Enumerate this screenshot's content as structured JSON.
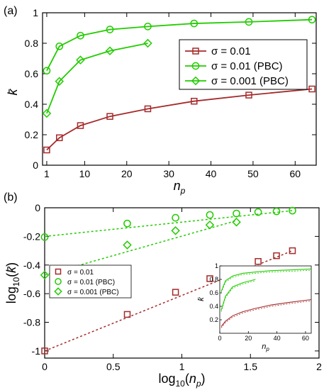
{
  "colors": {
    "red": "#a52a2a",
    "green": "#22cc00",
    "axis": "#000000"
  },
  "chart_data": [
    {
      "type": "line",
      "panel_label": "(a)",
      "xlabel": {
        "main": "n",
        "sub": "p"
      },
      "ylabel": "k̄",
      "xlim": [
        0,
        65
      ],
      "ylim": [
        0,
        1
      ],
      "xticks": [
        1,
        10,
        20,
        30,
        40,
        50,
        60
      ],
      "yticks": [
        0,
        0.2,
        0.4,
        0.6,
        0.8,
        1
      ],
      "legend_position": "center-right",
      "series": [
        {
          "name": "σ = 0.01",
          "color": "#a52a2a",
          "marker": "square",
          "x": [
            1,
            4,
            9,
            16,
            25,
            36,
            49,
            64
          ],
          "y": [
            0.1,
            0.18,
            0.26,
            0.32,
            0.37,
            0.42,
            0.46,
            0.5
          ]
        },
        {
          "name": "σ = 0.01 (PBC)",
          "color": "#22cc00",
          "marker": "circle",
          "x": [
            1,
            4,
            9,
            16,
            25,
            36,
            49,
            64
          ],
          "y": [
            0.62,
            0.78,
            0.85,
            0.89,
            0.91,
            0.93,
            0.94,
            0.955
          ]
        },
        {
          "name": "σ = 0.001 (PBC)",
          "color": "#22cc00",
          "marker": "diamond",
          "x": [
            1,
            4,
            9,
            16,
            25
          ],
          "y": [
            0.34,
            0.55,
            0.69,
            0.75,
            0.8
          ]
        }
      ]
    },
    {
      "type": "scatter",
      "panel_label": "(b)",
      "xlabel": "log10(np)",
      "ylabel": "log10(k̄)",
      "xlim": [
        0,
        2
      ],
      "ylim": [
        -1.05,
        0
      ],
      "xticks": [
        0,
        0.5,
        1,
        1.5,
        2
      ],
      "xtick_labels": [
        "0",
        "0.5",
        "1",
        "1.5",
        "2"
      ],
      "yticks": [
        0,
        -0.2,
        -0.4,
        -0.6,
        -0.8,
        -1
      ],
      "ytick_labels": [
        "0",
        "-0.2",
        "-0.4",
        "-0.6",
        "-0.8",
        "-1"
      ],
      "fit_lines": "dashed",
      "legend_position": "center-left",
      "series": [
        {
          "name": "σ = 0.01",
          "color": "#a52a2a",
          "marker": "square",
          "x": [
            0,
            0.602,
            0.954,
            1.204,
            1.398,
            1.556,
            1.69,
            1.806
          ],
          "y": [
            -1.0,
            -0.745,
            -0.59,
            -0.495,
            -0.43,
            -0.375,
            -0.335,
            -0.3
          ],
          "fit": [
            [
              0,
              -1.0
            ],
            [
              1.806,
              -0.3
            ]
          ]
        },
        {
          "name": "σ = 0.01 (PBC)",
          "color": "#22cc00",
          "marker": "circle",
          "x": [
            0,
            0.602,
            0.954,
            1.204,
            1.398,
            1.556,
            1.69,
            1.806
          ],
          "y": [
            -0.205,
            -0.11,
            -0.07,
            -0.05,
            -0.04,
            -0.03,
            -0.025,
            -0.02
          ],
          "fit": [
            [
              0,
              -0.2
            ],
            [
              1.806,
              -0.02
            ]
          ]
        },
        {
          "name": "σ = 0.001 (PBC)",
          "color": "#22cc00",
          "marker": "diamond",
          "x": [
            0,
            0.602,
            0.954,
            1.204,
            1.398
          ],
          "y": [
            -0.47,
            -0.26,
            -0.16,
            -0.12,
            -0.1
          ],
          "fit": [
            [
              0,
              -0.47
            ],
            [
              1.398,
              -0.09
            ]
          ]
        }
      ],
      "inset": {
        "type": "line",
        "xlabel": {
          "main": "n",
          "sub": "p"
        },
        "ylabel": "k̄",
        "xlim": [
          0,
          64
        ],
        "ylim": [
          0,
          1
        ],
        "xticks": [
          0,
          20,
          40,
          60
        ],
        "xtick_labels": [
          "0",
          "20",
          "40",
          "60"
        ],
        "yticks": [
          0.2,
          0.4,
          0.6,
          0.8,
          1
        ],
        "ytick_labels": [
          "0.2",
          "0.4",
          "0.6",
          "0.8",
          "1"
        ],
        "series": [
          {
            "color": "#a52a2a",
            "x": [
              1,
              4,
              9,
              16,
              25,
              36,
              49,
              64
            ],
            "y": [
              0.1,
              0.18,
              0.26,
              0.32,
              0.37,
              0.42,
              0.46,
              0.5
            ]
          },
          {
            "color": "#22cc00",
            "x": [
              1,
              4,
              9,
              16,
              25,
              36,
              49,
              64
            ],
            "y": [
              0.62,
              0.78,
              0.85,
              0.89,
              0.91,
              0.93,
              0.94,
              0.955
            ]
          },
          {
            "color": "#22cc00",
            "x": [
              1,
              4,
              9,
              16,
              25
            ],
            "y": [
              0.34,
              0.55,
              0.69,
              0.75,
              0.8
            ]
          }
        ]
      }
    }
  ]
}
